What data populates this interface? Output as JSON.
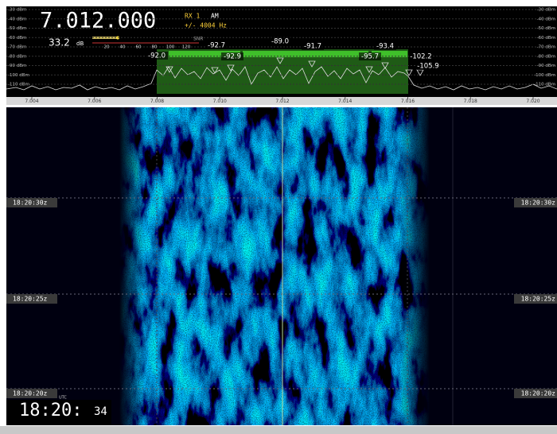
{
  "header": {
    "frequency": "7.012.000",
    "rx": "RX 1",
    "mode": "AM",
    "bandwidth": "+/- 4004 Hz",
    "level": "33.2",
    "level_unit": "dB",
    "snr": "SNR",
    "meter_scale": [
      "20",
      "40",
      "60",
      "80",
      "100",
      "120"
    ]
  },
  "dbm_scale": [
    "-30 dBm",
    "-40 dBm",
    "-50 dBm",
    "-60 dBm",
    "-70 dBm",
    "-80 dBm",
    "-90 dBm",
    "-100 dBm",
    "-110 dBm"
  ],
  "peaks": [
    "-92.0",
    "-92.7",
    "-92.9",
    "-89.0",
    "-91.7",
    "-95.7",
    "-93.4",
    "-102.2",
    "-105.9"
  ],
  "freq_axis": [
    "7.004",
    "7.006",
    "7.008",
    "7.010",
    "7.012",
    "7.014",
    "7.016",
    "7.018",
    "7.020"
  ],
  "time_marks": [
    "18:20:30z",
    "18:20:25z",
    "18:20:20z"
  ],
  "clock": {
    "time": "18:20:",
    "seconds": "34",
    "tz": "UTC"
  }
}
